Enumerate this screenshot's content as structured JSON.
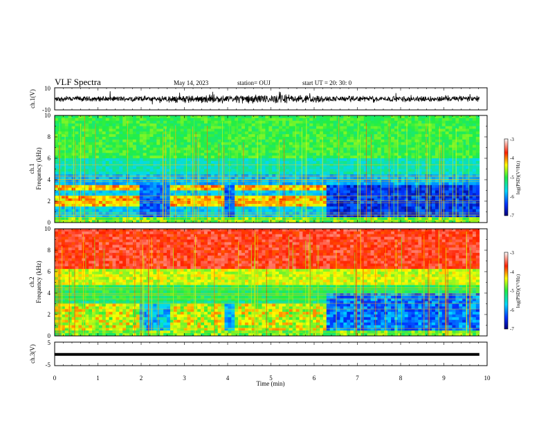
{
  "header": {
    "title": "VLF Spectra",
    "date": "May 14, 2023",
    "station": "station= OUJ",
    "start": "start  UT  =   20: 30: 0"
  },
  "chart_data": [
    {
      "type": "line",
      "name": "ch1-waveform",
      "ylabel": "ch.1(V)",
      "xlim": [
        0,
        10
      ],
      "ylim": [
        -10,
        10
      ],
      "yticks": [
        "10",
        "-10"
      ],
      "x_end": 9.82
    },
    {
      "type": "heatmap",
      "name": "ch1-spectrogram",
      "ylabel": "ch.1  Frequency (kHz)",
      "ylabel_top": "ch.1",
      "ylabel_bottom": "Frequency (kHz)",
      "xlim": [
        0,
        10
      ],
      "ylim": [
        0,
        10
      ],
      "yticks": [
        "0",
        "2",
        "4",
        "6",
        "8",
        "10"
      ],
      "x_end": 9.82,
      "quiet_after_min": 6.25,
      "colorbar": {
        "label": "log(PSD)(V²/Hz)",
        "min": -7,
        "max": -3,
        "ticks": [
          "-3",
          "-4",
          "-5",
          "-6",
          "-7"
        ]
      }
    },
    {
      "type": "heatmap",
      "name": "ch2-spectrogram",
      "ylabel": "ch.2  Frequency (kHz)",
      "ylabel_top": "ch.2",
      "ylabel_bottom": "Frequency (kHz)",
      "xlim": [
        0,
        10
      ],
      "ylim": [
        0,
        10
      ],
      "yticks": [
        "0",
        "2",
        "4",
        "6",
        "8",
        "10"
      ],
      "x_end": 9.82,
      "quiet_after_min": 6.25,
      "colorbar": {
        "label": "log(PSD)(V²/Hz)",
        "min": -7,
        "max": -3,
        "ticks": [
          "-3",
          "-4",
          "-5",
          "-6",
          "-7"
        ]
      }
    },
    {
      "type": "line",
      "name": "ch3-level",
      "ylabel": "ch.3(V)",
      "xlim": [
        0,
        10
      ],
      "ylim": [
        -5,
        5
      ],
      "yticks": [
        "5",
        "-5"
      ],
      "level": -0.2,
      "x_end": 9.82
    }
  ],
  "xaxis": {
    "label": "Time  (min)",
    "ticks": [
      "0",
      "1",
      "2",
      "3",
      "4",
      "5",
      "6",
      "7",
      "8",
      "9",
      "10"
    ]
  }
}
